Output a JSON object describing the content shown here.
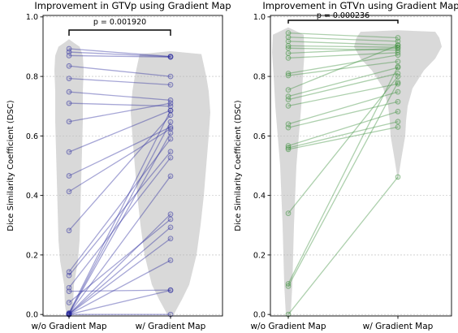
{
  "chart_data": [
    {
      "type": "scatter",
      "title": "Improvement in GTVp using Gradient Map",
      "ylabel": "Dice Similarity Coefficient (DSC)",
      "categories": [
        "w/o Gradient Map",
        "w/ Gradient Map"
      ],
      "yticks": [
        "0.0",
        "0.2",
        "0.4",
        "0.6",
        "0.8",
        "1.0"
      ],
      "ylim": [
        -0.005,
        1.005
      ],
      "grid": true,
      "annotation": "p = 0.001920",
      "color": "#2b2b9e",
      "series": [
        {
          "values": [
            0.893,
            0.867
          ]
        },
        {
          "values": [
            0.882,
            0.866
          ]
        },
        {
          "values": [
            0.87,
            0.865
          ]
        },
        {
          "values": [
            0.835,
            0.8
          ]
        },
        {
          "values": [
            0.793,
            0.772
          ]
        },
        {
          "values": [
            0.748,
            0.72
          ]
        },
        {
          "values": [
            0.71,
            0.7
          ]
        },
        {
          "values": [
            0.648,
            0.71
          ]
        },
        {
          "values": [
            0.546,
            0.686
          ]
        },
        {
          "values": [
            0.466,
            0.63
          ]
        },
        {
          "values": [
            0.413,
            0.624
          ]
        },
        {
          "values": [
            0.282,
            0.67
          ]
        },
        {
          "values": [
            0.143,
            0.59
          ]
        },
        {
          "values": [
            0.131,
            0.547
          ]
        },
        {
          "values": [
            0.09,
            0.527
          ]
        },
        {
          "values": [
            0.078,
            0.082
          ]
        },
        {
          "values": [
            0.04,
            0.32
          ]
        },
        {
          "values": [
            0.005,
            0.685
          ]
        },
        {
          "values": [
            0.003,
            0.647
          ]
        },
        {
          "values": [
            0.002,
            0.61
          ]
        },
        {
          "values": [
            0.002,
            0.465
          ]
        },
        {
          "values": [
            0.001,
            0.337
          ]
        },
        {
          "values": [
            0.001,
            0.293
          ]
        },
        {
          "values": [
            0.001,
            0.255
          ]
        },
        {
          "values": [
            0.0,
            0.182
          ]
        },
        {
          "values": [
            0.0,
            0.081
          ]
        },
        {
          "values": [
            0.0,
            0.0
          ]
        }
      ]
    },
    {
      "type": "scatter",
      "title": "Improvement in GTVn using Gradient Map",
      "ylabel": "Dice Similarity Coefficient (DSC)",
      "categories": [
        "w/o Gradient Map",
        "w/ Gradient Map"
      ],
      "yticks": [
        "0.0",
        "0.2",
        "0.4",
        "0.6",
        "0.8",
        "1.0"
      ],
      "ylim": [
        -0.005,
        1.005
      ],
      "grid": true,
      "annotation": "p = 0.000236",
      "color": "#3b8f3b",
      "series": [
        {
          "values": [
            0.946,
            0.93
          ]
        },
        {
          "values": [
            0.932,
            0.918
          ]
        },
        {
          "values": [
            0.918,
            0.905
          ]
        },
        {
          "values": [
            0.903,
            0.898
          ]
        },
        {
          "values": [
            0.895,
            0.888
          ]
        },
        {
          "values": [
            0.878,
            0.895
          ]
        },
        {
          "values": [
            0.862,
            0.88
          ]
        },
        {
          "values": [
            0.81,
            0.872
          ]
        },
        {
          "values": [
            0.803,
            0.85
          ]
        },
        {
          "values": [
            0.755,
            0.905
          ]
        },
        {
          "values": [
            0.733,
            0.83
          ]
        },
        {
          "values": [
            0.722,
            0.81
          ]
        },
        {
          "values": [
            0.701,
            0.775
          ]
        },
        {
          "values": [
            0.64,
            0.748
          ]
        },
        {
          "values": [
            0.628,
            0.715
          ]
        },
        {
          "values": [
            0.567,
            0.682
          ]
        },
        {
          "values": [
            0.56,
            0.648
          ]
        },
        {
          "values": [
            0.555,
            0.63
          ]
        },
        {
          "values": [
            0.34,
            0.8
          ]
        },
        {
          "values": [
            0.103,
            0.833
          ]
        },
        {
          "values": [
            0.095,
            0.78
          ]
        },
        {
          "values": [
            0.0,
            0.462
          ]
        }
      ]
    }
  ]
}
